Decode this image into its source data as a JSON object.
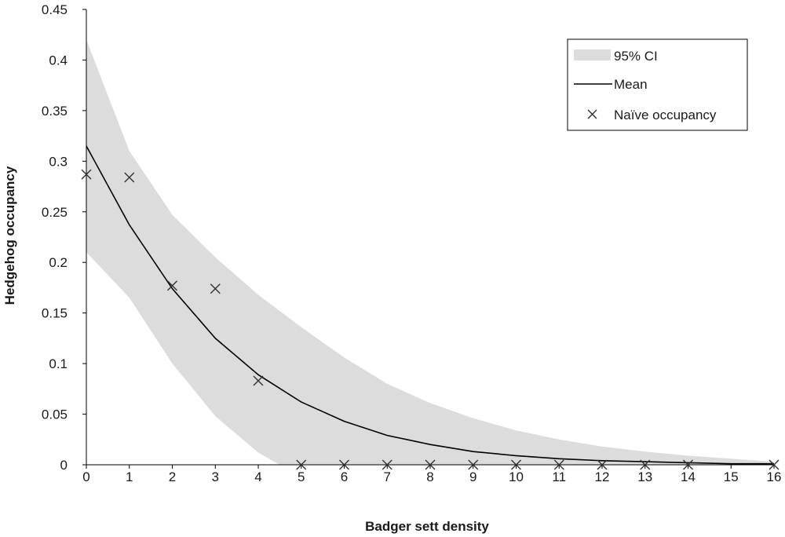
{
  "chart_data": {
    "type": "line",
    "xlabel": "Badger sett density",
    "ylabel": "Hedgehog occupancy",
    "xlim": [
      0,
      16
    ],
    "ylim": [
      0,
      0.45
    ],
    "x_ticks": [
      0,
      1,
      2,
      3,
      4,
      5,
      6,
      7,
      8,
      9,
      10,
      11,
      12,
      13,
      14,
      15,
      16
    ],
    "y_ticks": [
      "0",
      "0.05",
      "0.1",
      "0.15",
      "0.2",
      "0.25",
      "0.3",
      "0.35",
      "0.4",
      "0.45"
    ],
    "grid": false,
    "legend_position": "top-right",
    "legend": [
      {
        "label": "95% CI",
        "kind": "band"
      },
      {
        "label": "Mean",
        "kind": "line"
      },
      {
        "label": "Naïve occupancy",
        "kind": "marker"
      }
    ],
    "series": [
      {
        "name": "Mean",
        "kind": "line",
        "color": "#000000",
        "x": [
          0,
          1,
          2,
          3,
          4,
          5,
          6,
          7,
          8,
          9,
          10,
          11,
          12,
          13,
          14,
          15,
          16
        ],
        "y": [
          0.315,
          0.237,
          0.174,
          0.125,
          0.089,
          0.062,
          0.043,
          0.029,
          0.02,
          0.013,
          0.009,
          0.006,
          0.004,
          0.003,
          0.002,
          0.001,
          0.001
        ]
      },
      {
        "name": "95% CI",
        "kind": "band",
        "color": "#dcdcdc",
        "x": [
          0,
          1,
          2,
          3,
          4,
          4.5,
          5,
          6,
          7,
          8,
          9,
          10,
          11,
          12,
          13,
          14,
          15,
          16
        ],
        "lower": [
          0.21,
          0.165,
          0.1,
          0.048,
          0.012,
          0.0,
          0.0,
          0.0,
          0.0,
          0.0,
          0.0,
          0.0,
          0.0,
          0.0,
          0.0,
          0.0,
          0.0,
          0.0
        ],
        "upper": [
          0.42,
          0.31,
          0.247,
          0.205,
          0.168,
          0.152,
          0.136,
          0.106,
          0.08,
          0.061,
          0.046,
          0.034,
          0.025,
          0.018,
          0.013,
          0.009,
          0.006,
          0.003
        ]
      },
      {
        "name": "Naïve occupancy",
        "kind": "scatter",
        "marker": "x",
        "color": "#333333",
        "x": [
          0,
          1,
          2,
          3,
          4,
          5,
          6,
          7,
          8,
          9,
          10,
          11,
          12,
          13,
          14,
          16
        ],
        "y": [
          0.287,
          0.284,
          0.177,
          0.174,
          0.083,
          0,
          0,
          0,
          0,
          0,
          0,
          0,
          0,
          0,
          0,
          0
        ]
      }
    ]
  }
}
